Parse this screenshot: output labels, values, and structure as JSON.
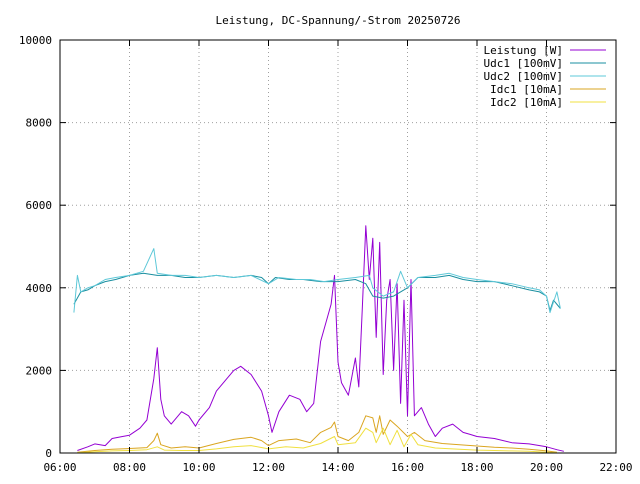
{
  "chart_data": {
    "type": "line",
    "title": "Leistung, DC-Spannung/-Strom 20250726",
    "xlabel": "",
    "ylabel": "",
    "x_unit": "hours",
    "xlim": [
      6,
      22
    ],
    "ylim": [
      0,
      10000
    ],
    "x_ticks": [
      "06:00",
      "08:00",
      "10:00",
      "12:00",
      "14:00",
      "16:00",
      "18:00",
      "20:00",
      "22:00"
    ],
    "y_ticks": [
      "0",
      "2000",
      "4000",
      "6000",
      "8000",
      "10000"
    ],
    "grid": true,
    "legend_position": "top-right",
    "series": [
      {
        "name": "Leistung [W]",
        "color": "#9400d3",
        "points": [
          [
            6.5,
            60
          ],
          [
            6.8,
            150
          ],
          [
            7.0,
            220
          ],
          [
            7.3,
            180
          ],
          [
            7.5,
            350
          ],
          [
            7.8,
            400
          ],
          [
            8.0,
            430
          ],
          [
            8.3,
            600
          ],
          [
            8.5,
            800
          ],
          [
            8.7,
            1800
          ],
          [
            8.8,
            2550
          ],
          [
            8.9,
            1300
          ],
          [
            9.0,
            900
          ],
          [
            9.2,
            700
          ],
          [
            9.5,
            1000
          ],
          [
            9.7,
            900
          ],
          [
            9.9,
            650
          ],
          [
            10.0,
            800
          ],
          [
            10.3,
            1100
          ],
          [
            10.5,
            1500
          ],
          [
            10.8,
            1800
          ],
          [
            11.0,
            2000
          ],
          [
            11.2,
            2100
          ],
          [
            11.5,
            1900
          ],
          [
            11.8,
            1500
          ],
          [
            12.0,
            900
          ],
          [
            12.1,
            500
          ],
          [
            12.3,
            1000
          ],
          [
            12.6,
            1400
          ],
          [
            12.9,
            1300
          ],
          [
            13.1,
            1000
          ],
          [
            13.3,
            1200
          ],
          [
            13.5,
            2700
          ],
          [
            13.8,
            3600
          ],
          [
            13.9,
            4300
          ],
          [
            14.0,
            2200
          ],
          [
            14.1,
            1700
          ],
          [
            14.3,
            1400
          ],
          [
            14.5,
            2300
          ],
          [
            14.6,
            1600
          ],
          [
            14.7,
            3500
          ],
          [
            14.8,
            5500
          ],
          [
            14.9,
            4200
          ],
          [
            15.0,
            5200
          ],
          [
            15.1,
            2800
          ],
          [
            15.2,
            5100
          ],
          [
            15.3,
            1900
          ],
          [
            15.4,
            3700
          ],
          [
            15.5,
            4200
          ],
          [
            15.6,
            2000
          ],
          [
            15.7,
            4100
          ],
          [
            15.8,
            1200
          ],
          [
            15.9,
            3700
          ],
          [
            16.0,
            900
          ],
          [
            16.1,
            4200
          ],
          [
            16.2,
            900
          ],
          [
            16.4,
            1100
          ],
          [
            16.6,
            700
          ],
          [
            16.8,
            400
          ],
          [
            17.0,
            600
          ],
          [
            17.3,
            700
          ],
          [
            17.6,
            500
          ],
          [
            17.8,
            450
          ],
          [
            18.0,
            400
          ],
          [
            18.5,
            350
          ],
          [
            19.0,
            250
          ],
          [
            19.5,
            220
          ],
          [
            20.0,
            150
          ],
          [
            20.3,
            80
          ],
          [
            20.5,
            40
          ]
        ]
      },
      {
        "name": "Udc1 [100mV]",
        "color": "#1a8fa0",
        "points": [
          [
            6.4,
            3600
          ],
          [
            6.6,
            3900
          ],
          [
            6.8,
            3950
          ],
          [
            7.0,
            4050
          ],
          [
            7.3,
            4150
          ],
          [
            7.6,
            4200
          ],
          [
            8.0,
            4300
          ],
          [
            8.4,
            4350
          ],
          [
            8.8,
            4300
          ],
          [
            9.2,
            4300
          ],
          [
            9.6,
            4250
          ],
          [
            10.0,
            4250
          ],
          [
            10.5,
            4300
          ],
          [
            11.0,
            4250
          ],
          [
            11.5,
            4300
          ],
          [
            11.8,
            4250
          ],
          [
            12.0,
            4100
          ],
          [
            12.2,
            4250
          ],
          [
            12.6,
            4200
          ],
          [
            13.0,
            4200
          ],
          [
            13.5,
            4150
          ],
          [
            14.0,
            4150
          ],
          [
            14.5,
            4200
          ],
          [
            14.8,
            4100
          ],
          [
            15.0,
            3800
          ],
          [
            15.3,
            3750
          ],
          [
            15.6,
            3800
          ],
          [
            16.0,
            4000
          ],
          [
            16.3,
            4250
          ],
          [
            16.8,
            4250
          ],
          [
            17.2,
            4300
          ],
          [
            17.6,
            4200
          ],
          [
            18.0,
            4150
          ],
          [
            18.5,
            4150
          ],
          [
            19.0,
            4050
          ],
          [
            19.5,
            3950
          ],
          [
            19.8,
            3900
          ],
          [
            20.0,
            3800
          ],
          [
            20.1,
            3450
          ],
          [
            20.2,
            3700
          ],
          [
            20.4,
            3500
          ]
        ]
      },
      {
        "name": "Udc2 [100mV]",
        "color": "#5ec8d8",
        "points": [
          [
            6.4,
            3400
          ],
          [
            6.5,
            4300
          ],
          [
            6.6,
            3900
          ],
          [
            6.8,
            4000
          ],
          [
            7.0,
            4050
          ],
          [
            7.3,
            4200
          ],
          [
            7.6,
            4250
          ],
          [
            8.0,
            4300
          ],
          [
            8.4,
            4400
          ],
          [
            8.7,
            4950
          ],
          [
            8.8,
            4350
          ],
          [
            9.2,
            4300
          ],
          [
            9.6,
            4300
          ],
          [
            10.0,
            4250
          ],
          [
            10.5,
            4300
          ],
          [
            11.0,
            4250
          ],
          [
            11.5,
            4300
          ],
          [
            12.0,
            4100
          ],
          [
            12.3,
            4250
          ],
          [
            12.8,
            4200
          ],
          [
            13.2,
            4200
          ],
          [
            13.6,
            4150
          ],
          [
            14.0,
            4200
          ],
          [
            14.5,
            4250
          ],
          [
            14.9,
            4300
          ],
          [
            15.0,
            4000
          ],
          [
            15.3,
            3800
          ],
          [
            15.6,
            3900
          ],
          [
            15.8,
            4400
          ],
          [
            16.0,
            4000
          ],
          [
            16.3,
            4250
          ],
          [
            16.8,
            4300
          ],
          [
            17.2,
            4350
          ],
          [
            17.6,
            4250
          ],
          [
            18.0,
            4200
          ],
          [
            18.5,
            4150
          ],
          [
            19.0,
            4100
          ],
          [
            19.5,
            4000
          ],
          [
            19.8,
            3950
          ],
          [
            20.0,
            3800
          ],
          [
            20.1,
            3400
          ],
          [
            20.3,
            3900
          ],
          [
            20.4,
            3500
          ]
        ]
      },
      {
        "name": "Idc1 [10mA]",
        "color": "#daa520",
        "points": [
          [
            6.5,
            20
          ],
          [
            7.0,
            60
          ],
          [
            7.5,
            90
          ],
          [
            8.0,
            110
          ],
          [
            8.5,
            130
          ],
          [
            8.7,
            300
          ],
          [
            8.8,
            480
          ],
          [
            8.9,
            200
          ],
          [
            9.2,
            120
          ],
          [
            9.6,
            150
          ],
          [
            10.0,
            120
          ],
          [
            10.5,
            230
          ],
          [
            11.0,
            330
          ],
          [
            11.5,
            380
          ],
          [
            11.8,
            300
          ],
          [
            12.0,
            180
          ],
          [
            12.3,
            300
          ],
          [
            12.8,
            340
          ],
          [
            13.2,
            250
          ],
          [
            13.5,
            500
          ],
          [
            13.8,
            620
          ],
          [
            13.9,
            750
          ],
          [
            14.0,
            400
          ],
          [
            14.3,
            300
          ],
          [
            14.6,
            500
          ],
          [
            14.8,
            900
          ],
          [
            15.0,
            850
          ],
          [
            15.1,
            500
          ],
          [
            15.2,
            900
          ],
          [
            15.3,
            450
          ],
          [
            15.5,
            800
          ],
          [
            15.7,
            650
          ],
          [
            16.0,
            400
          ],
          [
            16.2,
            500
          ],
          [
            16.5,
            300
          ],
          [
            17.0,
            230
          ],
          [
            17.5,
            200
          ],
          [
            18.0,
            170
          ],
          [
            18.5,
            140
          ],
          [
            19.0,
            120
          ],
          [
            19.5,
            90
          ],
          [
            20.0,
            50
          ],
          [
            20.3,
            20
          ]
        ]
      },
      {
        "name": "Idc2 [10mA]",
        "color": "#f0e040",
        "points": [
          [
            6.5,
            10
          ],
          [
            7.0,
            30
          ],
          [
            7.5,
            50
          ],
          [
            8.0,
            60
          ],
          [
            8.5,
            80
          ],
          [
            8.8,
            150
          ],
          [
            9.0,
            70
          ],
          [
            9.5,
            60
          ],
          [
            10.0,
            60
          ],
          [
            10.5,
            100
          ],
          [
            11.0,
            150
          ],
          [
            11.5,
            180
          ],
          [
            12.0,
            100
          ],
          [
            12.5,
            150
          ],
          [
            13.0,
            120
          ],
          [
            13.5,
            230
          ],
          [
            13.9,
            400
          ],
          [
            14.0,
            200
          ],
          [
            14.5,
            250
          ],
          [
            14.8,
            600
          ],
          [
            15.0,
            500
          ],
          [
            15.1,
            250
          ],
          [
            15.3,
            600
          ],
          [
            15.5,
            200
          ],
          [
            15.7,
            550
          ],
          [
            15.9,
            150
          ],
          [
            16.1,
            450
          ],
          [
            16.3,
            200
          ],
          [
            16.8,
            120
          ],
          [
            17.5,
            90
          ],
          [
            18.0,
            70
          ],
          [
            18.5,
            60
          ],
          [
            19.0,
            50
          ],
          [
            19.5,
            40
          ],
          [
            20.0,
            20
          ],
          [
            20.3,
            10
          ]
        ]
      }
    ]
  }
}
